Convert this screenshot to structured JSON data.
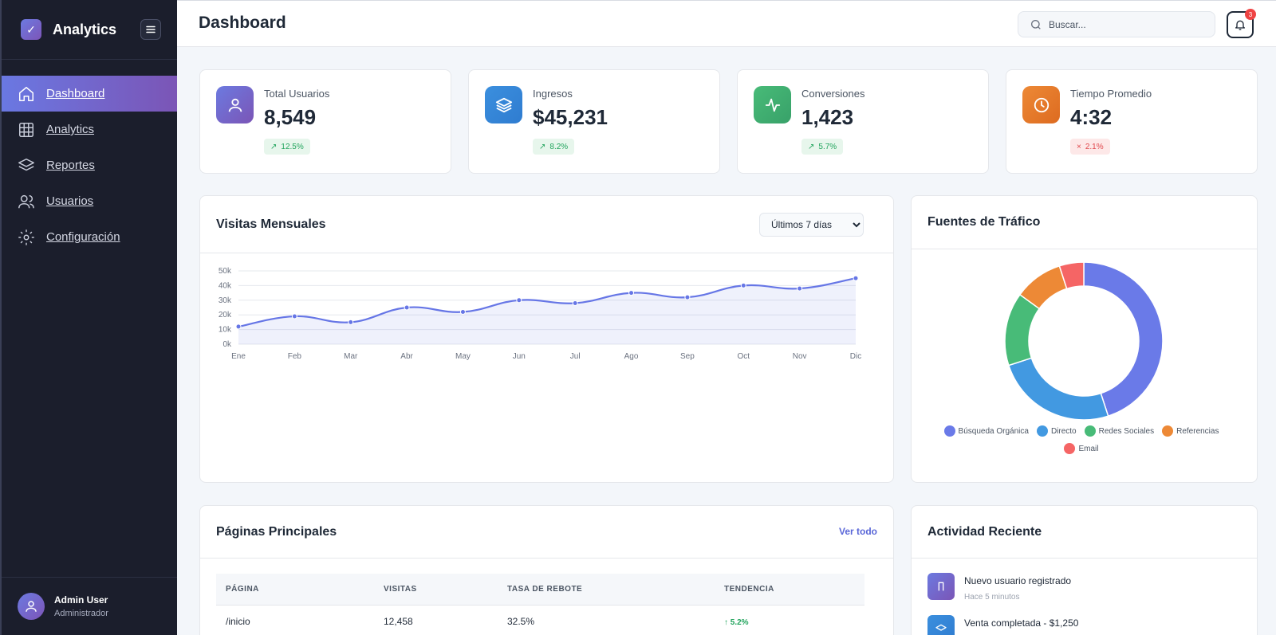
{
  "sidebar": {
    "brand": "Analytics",
    "items": [
      {
        "label": "Dashboard",
        "icon": "home-icon"
      },
      {
        "label": "Analytics",
        "icon": "grid-icon"
      },
      {
        "label": "Reportes",
        "icon": "layers-icon"
      },
      {
        "label": "Usuarios",
        "icon": "users-icon"
      },
      {
        "label": "Configuración",
        "icon": "sun-icon"
      }
    ],
    "user": {
      "name": "Admin User",
      "role": "Administrador"
    }
  },
  "header": {
    "title": "Dashboard",
    "search_placeholder": "Buscar...",
    "notification_count": "3"
  },
  "stats": [
    {
      "label": "Total Usuarios",
      "value": "8,549",
      "change": "12.5%",
      "direction": "up",
      "icon": "user-icon",
      "color": "#6a6fd6"
    },
    {
      "label": "Ingresos",
      "value": "$45,231",
      "change": "8.2%",
      "direction": "up",
      "icon": "layers-icon",
      "color": "#3b8fde"
    },
    {
      "label": "Conversiones",
      "value": "1,423",
      "change": "5.7%",
      "direction": "up",
      "icon": "activity-icon",
      "color": "#3fb56a"
    },
    {
      "label": "Tiempo Promedio",
      "value": "4:32",
      "change": "2.1%",
      "direction": "down",
      "icon": "clock-icon",
      "color": "#ec7a2a"
    }
  ],
  "visits": {
    "title": "Visitas Mensuales",
    "range_selected": "Últimos 7 días",
    "chart_data": {
      "type": "area",
      "categories": [
        "Ene",
        "Feb",
        "Mar",
        "Abr",
        "May",
        "Jun",
        "Jul",
        "Ago",
        "Sep",
        "Oct",
        "Nov",
        "Dic"
      ],
      "values": [
        12000,
        19000,
        15000,
        25000,
        22000,
        30000,
        28000,
        35000,
        32000,
        40000,
        38000,
        45000
      ],
      "y_ticks": [
        "0k",
        "10k",
        "20k",
        "30k",
        "40k",
        "50k"
      ],
      "ylim": [
        0,
        50000
      ],
      "grid": true,
      "color": "#6676e6"
    }
  },
  "traffic": {
    "title": "Fuentes de Tráfico",
    "chart_data": {
      "type": "pie",
      "labels": [
        "Búsqueda Orgánica",
        "Directo",
        "Redes Sociales",
        "Referencias",
        "Email"
      ],
      "values": [
        45,
        25,
        15,
        10,
        5
      ],
      "colors": [
        "#6a7ae8",
        "#4299e1",
        "#48bb78",
        "#ed8936",
        "#f56565"
      ],
      "legend": "bottom"
    }
  },
  "pages": {
    "title": "Páginas Principales",
    "view_all": "Ver todo",
    "columns": [
      "PÁGINA",
      "VISITAS",
      "TASA DE REBOTE",
      "TENDENCIA"
    ],
    "rows": [
      {
        "page": "/inicio",
        "visits": "12,458",
        "bounce": "32.5%",
        "trend": "↑ 5.2%"
      }
    ]
  },
  "activity": {
    "title": "Actividad Reciente",
    "items": [
      {
        "title": "Nuevo usuario registrado",
        "time": "Hace 5 minutos",
        "icon": "user-plus-icon",
        "color": "#6a6fd6"
      },
      {
        "title": "Venta completada - $1,250",
        "time": "",
        "icon": "layers-icon",
        "color": "#3b8fde"
      }
    ]
  }
}
